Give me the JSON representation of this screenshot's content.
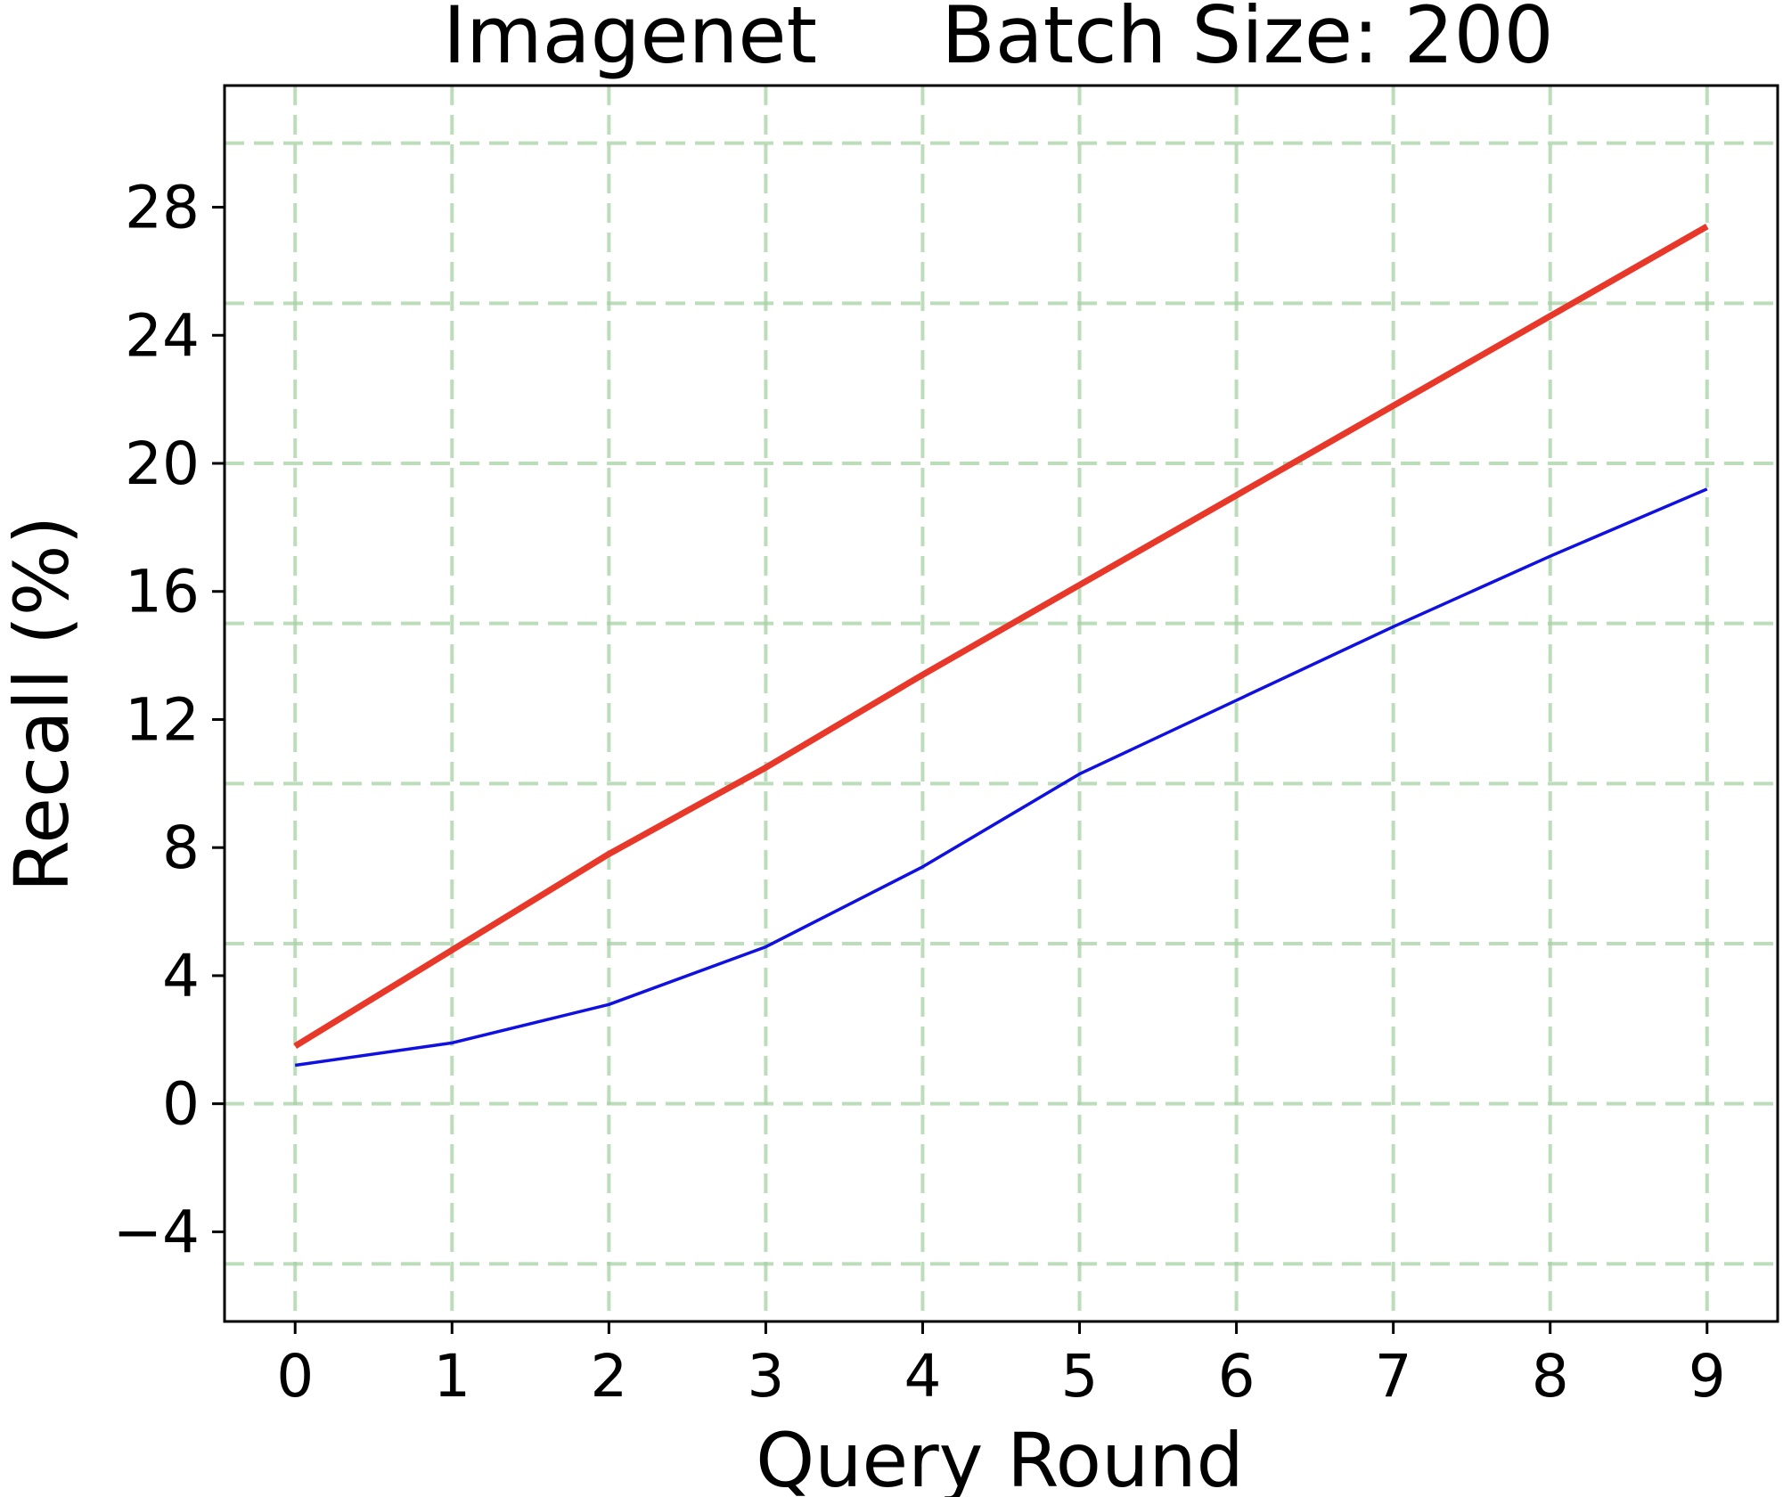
{
  "chart_data": {
    "type": "line",
    "title_left": "Imagenet",
    "title_right": "Batch Size: 200",
    "xlabel": "Query Round",
    "ylabel": "Recall (%)",
    "x": [
      0,
      1,
      2,
      3,
      4,
      5,
      6,
      7,
      8,
      9
    ],
    "xlim": [
      -0.45,
      9.45
    ],
    "ylim": [
      -6.8,
      31.8
    ],
    "xticks": [
      0,
      1,
      2,
      3,
      4,
      5,
      6,
      7,
      8,
      9
    ],
    "xtick_labels": [
      "0",
      "1",
      "2",
      "3",
      "4",
      "5",
      "6",
      "7",
      "8",
      "9"
    ],
    "yticks": [
      -4,
      0,
      4,
      8,
      12,
      16,
      20,
      24,
      28
    ],
    "ytick_labels": [
      "−4",
      "0",
      "4",
      "8",
      "12",
      "16",
      "20",
      "24",
      "28"
    ],
    "grid": true,
    "grid_x": [
      0,
      1,
      2,
      3,
      4,
      5,
      6,
      7,
      8,
      9
    ],
    "grid_y": [
      -5,
      0,
      5,
      10,
      15,
      20,
      25,
      30
    ],
    "grid_color": "#a5d1a3",
    "series": [
      {
        "color": "#e8382a",
        "width": 7,
        "values": [
          1.8,
          4.8,
          7.8,
          10.5,
          13.4,
          16.2,
          19.0,
          21.8,
          24.6,
          27.4
        ]
      },
      {
        "color": "#1010e0",
        "width": 3.5,
        "values": [
          1.2,
          1.9,
          3.1,
          4.9,
          7.4,
          10.3,
          12.6,
          14.9,
          17.1,
          19.2
        ]
      }
    ]
  }
}
